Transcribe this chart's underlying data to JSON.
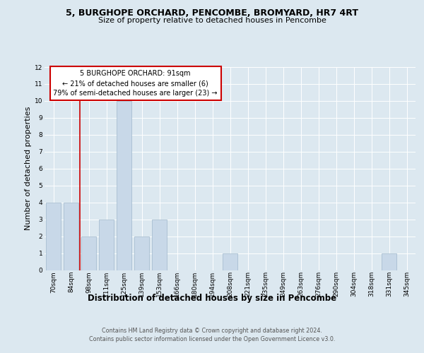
{
  "title": "5, BURGHOPE ORCHARD, PENCOMBE, BROMYARD, HR7 4RT",
  "subtitle": "Size of property relative to detached houses in Pencombe",
  "xlabel": "Distribution of detached houses by size in Pencombe",
  "ylabel": "Number of detached properties",
  "footer_line1": "Contains HM Land Registry data © Crown copyright and database right 2024.",
  "footer_line2": "Contains public sector information licensed under the Open Government Licence v3.0.",
  "annotation_line1": "5 BURGHOPE ORCHARD: 91sqm",
  "annotation_line2": "← 21% of detached houses are smaller (6)",
  "annotation_line3": "79% of semi-detached houses are larger (23) →",
  "bins": [
    "70sqm",
    "84sqm",
    "98sqm",
    "111sqm",
    "125sqm",
    "139sqm",
    "153sqm",
    "166sqm",
    "180sqm",
    "194sqm",
    "208sqm",
    "221sqm",
    "235sqm",
    "249sqm",
    "263sqm",
    "276sqm",
    "290sqm",
    "304sqm",
    "318sqm",
    "331sqm",
    "345sqm"
  ],
  "values": [
    4,
    4,
    2,
    3,
    10,
    2,
    3,
    0,
    0,
    0,
    1,
    0,
    0,
    0,
    0,
    0,
    0,
    0,
    0,
    1,
    0
  ],
  "bar_color": "#c8d8e8",
  "bar_edgecolor": "#a0b8cc",
  "redline_x": 1.5,
  "redline_color": "#cc0000",
  "annotation_box_facecolor": "#ffffff",
  "annotation_box_edgecolor": "#cc0000",
  "ylim": [
    0,
    12
  ],
  "yticks": [
    0,
    1,
    2,
    3,
    4,
    5,
    6,
    7,
    8,
    9,
    10,
    11,
    12
  ],
  "background_color": "#dce8f0",
  "title_fontsize": 9,
  "subtitle_fontsize": 8,
  "ylabel_fontsize": 8,
  "xlabel_fontsize": 8.5,
  "tick_fontsize": 6.5,
  "annotation_fontsize": 7,
  "footer_fontsize": 5.8
}
